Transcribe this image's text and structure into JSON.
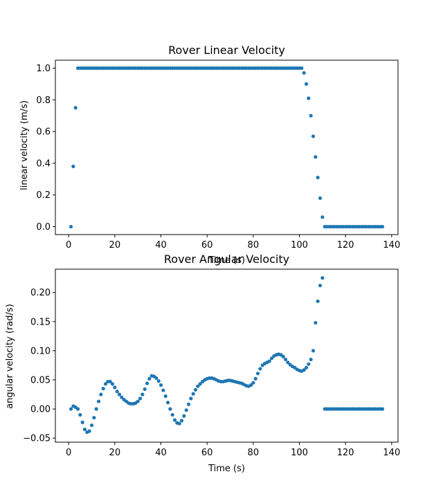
{
  "chart_data": [
    {
      "type": "scatter",
      "title": "Rover Linear Velocity",
      "xlabel": "Time (s)",
      "ylabel": "linear velocity (m/s)",
      "xlim": [
        -5.75,
        142.75
      ],
      "ylim": [
        -0.05,
        1.05
      ],
      "xticks": [
        0,
        20,
        40,
        60,
        80,
        100,
        120,
        140
      ],
      "yticks": [
        0.0,
        0.2,
        0.4,
        0.6,
        0.8,
        1.0
      ],
      "ytick_labels": [
        "0.0",
        "0.2",
        "0.4",
        "0.6",
        "0.8",
        "1.0"
      ],
      "grid": false,
      "marker_color": "#1f77b4",
      "series": [
        {
          "x": [
            1,
            2,
            3,
            4,
            5,
            6,
            7,
            8,
            9,
            10,
            11,
            12,
            13,
            14,
            15,
            16,
            17,
            18,
            19,
            20,
            21,
            22,
            23,
            24,
            25,
            26,
            27,
            28,
            29,
            30,
            31,
            32,
            33,
            34,
            35,
            36,
            37,
            38,
            39,
            40,
            41,
            42,
            43,
            44,
            45,
            46,
            47,
            48,
            49,
            50,
            51,
            52,
            53,
            54,
            55,
            56,
            57,
            58,
            59,
            60,
            61,
            62,
            63,
            64,
            65,
            66,
            67,
            68,
            69,
            70,
            71,
            72,
            73,
            74,
            75,
            76,
            77,
            78,
            79,
            80,
            81,
            82,
            83,
            84,
            85,
            86,
            87,
            88,
            89,
            90,
            91,
            92,
            93,
            94,
            95,
            96,
            97,
            98,
            99,
            100,
            101,
            102,
            103,
            104,
            105,
            106,
            107,
            108,
            109,
            110,
            111,
            112,
            113,
            114,
            115,
            116,
            117,
            118,
            119,
            120,
            121,
            122,
            123,
            124,
            125,
            126,
            127,
            128,
            129,
            130,
            131,
            132,
            133,
            134,
            135,
            136
          ],
          "y": [
            0.0,
            0.38,
            0.75,
            1,
            1,
            1,
            1,
            1,
            1,
            1,
            1,
            1,
            1,
            1,
            1,
            1,
            1,
            1,
            1,
            1,
            1,
            1,
            1,
            1,
            1,
            1,
            1,
            1,
            1,
            1,
            1,
            1,
            1,
            1,
            1,
            1,
            1,
            1,
            1,
            1,
            1,
            1,
            1,
            1,
            1,
            1,
            1,
            1,
            1,
            1,
            1,
            1,
            1,
            1,
            1,
            1,
            1,
            1,
            1,
            1,
            1,
            1,
            1,
            1,
            1,
            1,
            1,
            1,
            1,
            1,
            1,
            1,
            1,
            1,
            1,
            1,
            1,
            1,
            1,
            1,
            1,
            1,
            1,
            1,
            1,
            1,
            1,
            1,
            1,
            1,
            1,
            1,
            1,
            1,
            1,
            1,
            1,
            1,
            1,
            1,
            1,
            0.97,
            0.9,
            0.81,
            0.7,
            0.57,
            0.44,
            0.31,
            0.18,
            0.06,
            0,
            0,
            0,
            0,
            0,
            0,
            0,
            0,
            0,
            0,
            0,
            0,
            0,
            0,
            0,
            0,
            0,
            0,
            0,
            0,
            0,
            0,
            0,
            0,
            0,
            0
          ]
        }
      ]
    },
    {
      "type": "scatter",
      "title": "Rover Angular Velocity",
      "xlabel": "Time (s)",
      "ylabel": "angular velocity (rad/s)",
      "xlim": [
        -5.75,
        142.75
      ],
      "ylim": [
        -0.057,
        0.24
      ],
      "xticks": [
        0,
        20,
        40,
        60,
        80,
        100,
        120,
        140
      ],
      "yticks": [
        -0.05,
        0.0,
        0.05,
        0.1,
        0.15,
        0.2
      ],
      "ytick_labels": [
        "−0.05",
        "0.00",
        "0.05",
        "0.10",
        "0.15",
        "0.20"
      ],
      "grid": false,
      "marker_color": "#1f77b4",
      "series": [
        {
          "x": [
            1,
            2,
            3,
            4,
            5,
            6,
            7,
            8,
            9,
            10,
            11,
            12,
            13,
            14,
            15,
            16,
            17,
            18,
            19,
            20,
            21,
            22,
            23,
            24,
            25,
            26,
            27,
            28,
            29,
            30,
            31,
            32,
            33,
            34,
            35,
            36,
            37,
            38,
            39,
            40,
            41,
            42,
            43,
            44,
            45,
            46,
            47,
            48,
            49,
            50,
            51,
            52,
            53,
            54,
            55,
            56,
            57,
            58,
            59,
            60,
            61,
            62,
            63,
            64,
            65,
            66,
            67,
            68,
            69,
            70,
            71,
            72,
            73,
            74,
            75,
            76,
            77,
            78,
            79,
            80,
            81,
            82,
            83,
            84,
            85,
            86,
            87,
            88,
            89,
            90,
            91,
            92,
            93,
            94,
            95,
            96,
            97,
            98,
            99,
            100,
            101,
            102,
            103,
            104,
            105,
            106,
            107,
            108,
            109,
            110,
            111,
            112,
            113,
            114,
            115,
            116,
            117,
            118,
            119,
            120,
            121,
            122,
            123,
            124,
            125,
            126,
            127,
            128,
            129,
            130,
            131,
            132,
            133,
            134,
            135,
            136
          ],
          "y": [
            0.0,
            0.005,
            0.003,
            0.0,
            -0.01,
            -0.023,
            -0.035,
            -0.04,
            -0.038,
            -0.028,
            -0.015,
            0.0,
            0.013,
            0.025,
            0.035,
            0.043,
            0.047,
            0.047,
            0.043,
            0.037,
            0.03,
            0.025,
            0.02,
            0.016,
            0.013,
            0.01,
            0.009,
            0.009,
            0.01,
            0.013,
            0.018,
            0.025,
            0.034,
            0.044,
            0.052,
            0.057,
            0.056,
            0.053,
            0.048,
            0.041,
            0.032,
            0.022,
            0.011,
            0.0,
            -0.01,
            -0.019,
            -0.024,
            -0.025,
            -0.02,
            -0.012,
            -0.002,
            0.008,
            0.018,
            0.026,
            0.033,
            0.039,
            0.043,
            0.047,
            0.05,
            0.052,
            0.053,
            0.053,
            0.052,
            0.05,
            0.048,
            0.047,
            0.047,
            0.048,
            0.049,
            0.049,
            0.048,
            0.047,
            0.046,
            0.045,
            0.044,
            0.042,
            0.04,
            0.039,
            0.041,
            0.045,
            0.052,
            0.061,
            0.069,
            0.075,
            0.078,
            0.08,
            0.082,
            0.087,
            0.091,
            0.093,
            0.094,
            0.093,
            0.09,
            0.085,
            0.08,
            0.076,
            0.073,
            0.071,
            0.068,
            0.066,
            0.065,
            0.067,
            0.071,
            0.077,
            0.085,
            0.1,
            0.148,
            0.185,
            0.212,
            0.225,
            0,
            0,
            0,
            0,
            0,
            0,
            0,
            0,
            0,
            0,
            0,
            0,
            0,
            0,
            0,
            0,
            0,
            0,
            0,
            0,
            0,
            0,
            0,
            0,
            0,
            0
          ]
        }
      ]
    }
  ]
}
